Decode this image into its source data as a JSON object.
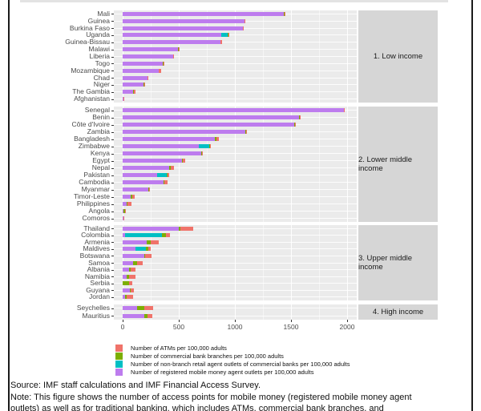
{
  "chart_data": {
    "type": "bar",
    "orientation": "horizontal",
    "stacked": true,
    "grid": true,
    "legend_position": "bottom-left",
    "x_ticks": [
      0,
      500,
      1000,
      1500,
      2000
    ],
    "x_minor_ticks": [
      250,
      750,
      1250,
      1750
    ],
    "xlim": [
      -80,
      2090
    ],
    "series_order": [
      "mobile_money_agents",
      "nonbranch_retail_agents",
      "bank_branches",
      "atms"
    ],
    "colors": {
      "atms": "#F0736A",
      "bank_branches": "#7CAE00",
      "nonbranch_retail_agents": "#00BFC4",
      "mobile_money_agents": "#BD7CEE",
      "panel_bg": "#EBEBEB",
      "strip_bg": "#D6D6D6"
    },
    "facets": [
      {
        "label": "1. Low income",
        "rows": [
          {
            "country": "Mali",
            "values": [
              1438,
              0,
              3,
              6
            ]
          },
          {
            "country": "Guinea",
            "values": [
              1085,
              0,
              3,
              5
            ]
          },
          {
            "country": "Burkina Faso",
            "values": [
              1070,
              0,
              5,
              7
            ]
          },
          {
            "country": "Uganda",
            "values": [
              878,
              59,
              3,
              4
            ]
          },
          {
            "country": "Guinea-Bissau",
            "values": [
              870,
              0,
              4,
              9
            ]
          },
          {
            "country": "Malawi",
            "values": [
              496,
              0,
              3,
              6
            ]
          },
          {
            "country": "Liberia",
            "values": [
              448,
              0,
              3,
              6
            ]
          },
          {
            "country": "Togo",
            "values": [
              360,
              0,
              3,
              6
            ]
          },
          {
            "country": "Mozambique",
            "values": [
              318,
              0,
              6,
              16
            ]
          },
          {
            "country": "Chad",
            "values": [
              220,
              0,
              2,
              4
            ]
          },
          {
            "country": "Niger",
            "values": [
              188,
              0,
              3,
              4
            ]
          },
          {
            "country": "The Gambia",
            "values": [
              93,
              0,
              7,
              12
            ]
          },
          {
            "country": "Afghanistan",
            "values": [
              8,
              0,
              2,
              2
            ]
          }
        ]
      },
      {
        "label": "2. Lower middle income",
        "rows": [
          {
            "country": "Senegal",
            "values": [
              1968,
              0,
              5,
              9
            ]
          },
          {
            "country": "Benin",
            "values": [
              1572,
              0,
              4,
              7
            ]
          },
          {
            "country": "Côte d'Ivoire",
            "values": [
              1532,
              0,
              4,
              7
            ]
          },
          {
            "country": "Zambia",
            "values": [
              1096,
              0,
              4,
              9
            ]
          },
          {
            "country": "Bangladesh",
            "values": [
              820,
              0,
              17,
              20
            ]
          },
          {
            "country": "Zimbabwe",
            "values": [
              675,
              98,
              3,
              5
            ]
          },
          {
            "country": "Kenya",
            "values": [
              700,
              0,
              6,
              10
            ]
          },
          {
            "country": "Egypt",
            "values": [
              530,
              0,
              4,
              26
            ]
          },
          {
            "country": "Nepal",
            "values": [
              414,
              0,
              18,
              22
            ]
          },
          {
            "country": "Pakistan",
            "values": [
              310,
              80,
              12,
              12
            ]
          },
          {
            "country": "Cambodia",
            "values": [
              365,
              0,
              6,
              26
            ]
          },
          {
            "country": "Myanmar",
            "values": [
              230,
              0,
              3,
              5
            ]
          },
          {
            "country": "Timor-Leste",
            "values": [
              74,
              0,
              12,
              18
            ]
          },
          {
            "country": "Philippines",
            "values": [
              38,
              0,
              8,
              30
            ]
          },
          {
            "country": "Angola",
            "values": [
              10,
              0,
              8,
              14
            ]
          },
          {
            "country": "Comoros",
            "values": [
              4,
              0,
              2,
              3
            ]
          }
        ]
      },
      {
        "label": "3. Upper middle income",
        "rows": [
          {
            "country": "Thailand",
            "values": [
              502,
              0,
              10,
              118
            ]
          },
          {
            "country": "Colombia",
            "values": [
              19,
              330,
              36,
              36
            ]
          },
          {
            "country": "Armenia",
            "values": [
              217,
              0,
              31,
              71
            ]
          },
          {
            "country": "Maldives",
            "values": [
              114,
              90,
              24,
              24
            ]
          },
          {
            "country": "Botswana",
            "values": [
              193,
              0,
              10,
              52
            ]
          },
          {
            "country": "Samoa",
            "values": [
              90,
              0,
              38,
              48
            ]
          },
          {
            "country": "Albania",
            "values": [
              60,
              0,
              12,
              45
            ]
          },
          {
            "country": "Namibia",
            "values": [
              38,
              0,
              19,
              57
            ]
          },
          {
            "country": "Serbia",
            "values": [
              2,
              0,
              55,
              30
            ]
          },
          {
            "country": "Guyana",
            "values": [
              65,
              0,
              8,
              26
            ]
          },
          {
            "country": "Jordan",
            "values": [
              19,
              0,
              19,
              52
            ]
          }
        ]
      },
      {
        "label": "4. High income",
        "rows": [
          {
            "country": "Seychelles",
            "values": [
              130,
              0,
              64,
              79
            ]
          },
          {
            "country": "Mauritius",
            "values": [
              193,
              0,
              31,
              41
            ]
          }
        ]
      }
    ]
  },
  "legend": [
    {
      "key": "atms",
      "label": "Number of ATMs per 100,000 adults"
    },
    {
      "key": "bank_branches",
      "label": "Number of commercial bank branches per 100,000 adults"
    },
    {
      "key": "nonbranch_retail_agents",
      "label": "Number of non-branch retail agent outlets of commercial banks per 100,000 adults"
    },
    {
      "key": "mobile_money_agents",
      "label": "Number of registered mobile money agent outlets per 100,000 adults"
    }
  ],
  "footer": {
    "source": "Source: IMF staff calculations and IMF Financial Access Survey.",
    "note_line1": "Note: This figure shows the number of access points for mobile money (registered mobile money agent",
    "note_line2": "outlets) as well as for traditional banking, which includes ATMs, commercial bank branches, and"
  }
}
